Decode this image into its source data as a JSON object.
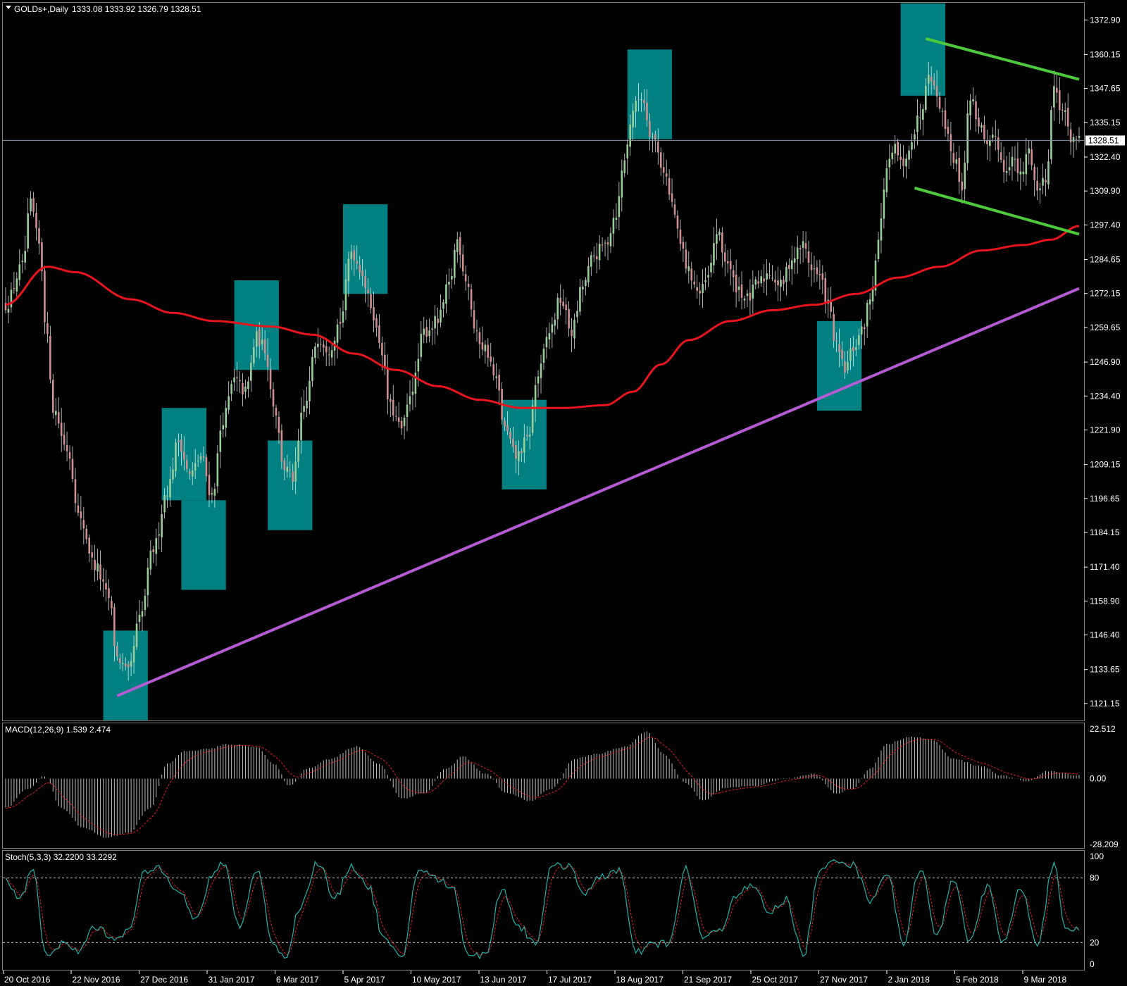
{
  "window": {
    "symbol_title": "GOLDs+,Daily",
    "ohlc_readout": "1333.08 1333.92 1326.79 1328.51"
  },
  "colors": {
    "background": "#000000",
    "grid": "#808080",
    "bull_candle": "#9acd9a",
    "bear_candle": "#d09090",
    "ma_line": "#e8141e",
    "trend_line": "#b45ad2",
    "channel": "#4ec83c",
    "highlight_box": "#008080",
    "macd_hist": "#c0c0c0",
    "macd_signal": "#e01e1e",
    "stoch_main": "#20b2aa",
    "stoch_signal": "#e01e1e",
    "current_price_line": "#8c9aa8"
  },
  "chart_data": [
    {
      "type": "candlestick",
      "title": "GOLDs+,Daily",
      "ohlc": {
        "open": 1333.08,
        "high": 1333.92,
        "low": 1326.79,
        "close": 1328.51
      },
      "current_price": 1328.51,
      "ylim": [
        1114.9,
        1379.2
      ],
      "y_ticks": [
        "1372.90",
        "1360.15",
        "1347.65",
        "1335.15",
        "1322.40",
        "1309.90",
        "1297.40",
        "1284.65",
        "1272.15",
        "1259.65",
        "1246.90",
        "1234.40",
        "1221.90",
        "1209.15",
        "1196.65",
        "1184.15",
        "1171.40",
        "1158.90",
        "1146.40",
        "1133.65",
        "1121.15"
      ],
      "x_ticks": [
        "20 Oct 2016",
        "22 Nov 2016",
        "27 Dec 2016",
        "31 Jan 2017",
        "6 Mar 2017",
        "5 Apr 2017",
        "10 May 2017",
        "13 Jun 2017",
        "17 Jul 2017",
        "18 Aug 2017",
        "21 Sep 2017",
        "25 Oct 2017",
        "27 Nov 2017",
        "2 Jan 2018",
        "5 Feb 2018",
        "9 Mar 2018"
      ],
      "price_path": [
        {
          "i": 0,
          "p": 1268
        },
        {
          "i": 6,
          "p": 1282
        },
        {
          "i": 9,
          "p": 1305
        },
        {
          "i": 12,
          "p": 1290
        },
        {
          "i": 15,
          "p": 1255
        },
        {
          "i": 17,
          "p": 1230
        },
        {
          "i": 22,
          "p": 1215
        },
        {
          "i": 27,
          "p": 1188
        },
        {
          "i": 32,
          "p": 1172
        },
        {
          "i": 37,
          "p": 1160
        },
        {
          "i": 40,
          "p": 1138
        },
        {
          "i": 44,
          "p": 1132
        },
        {
          "i": 48,
          "p": 1152
        },
        {
          "i": 53,
          "p": 1178
        },
        {
          "i": 58,
          "p": 1200
        },
        {
          "i": 62,
          "p": 1218
        },
        {
          "i": 66,
          "p": 1205
        },
        {
          "i": 70,
          "p": 1212
        },
        {
          "i": 74,
          "p": 1198
        },
        {
          "i": 78,
          "p": 1226
        },
        {
          "i": 82,
          "p": 1240
        },
        {
          "i": 86,
          "p": 1236
        },
        {
          "i": 90,
          "p": 1256
        },
        {
          "i": 93,
          "p": 1252
        },
        {
          "i": 96,
          "p": 1232
        },
        {
          "i": 100,
          "p": 1208
        },
        {
          "i": 103,
          "p": 1204
        },
        {
          "i": 107,
          "p": 1230
        },
        {
          "i": 112,
          "p": 1256
        },
        {
          "i": 116,
          "p": 1252
        },
        {
          "i": 120,
          "p": 1262
        },
        {
          "i": 124,
          "p": 1288
        },
        {
          "i": 127,
          "p": 1282
        },
        {
          "i": 131,
          "p": 1268
        },
        {
          "i": 134,
          "p": 1255
        },
        {
          "i": 138,
          "p": 1230
        },
        {
          "i": 142,
          "p": 1222
        },
        {
          "i": 146,
          "p": 1238
        },
        {
          "i": 150,
          "p": 1258
        },
        {
          "i": 155,
          "p": 1262
        },
        {
          "i": 159,
          "p": 1275
        },
        {
          "i": 162,
          "p": 1292
        },
        {
          "i": 165,
          "p": 1278
        },
        {
          "i": 169,
          "p": 1256
        },
        {
          "i": 172,
          "p": 1252
        },
        {
          "i": 176,
          "p": 1240
        },
        {
          "i": 179,
          "p": 1222
        },
        {
          "i": 183,
          "p": 1212
        },
        {
          "i": 187,
          "p": 1218
        },
        {
          "i": 191,
          "p": 1242
        },
        {
          "i": 195,
          "p": 1258
        },
        {
          "i": 199,
          "p": 1270
        },
        {
          "i": 203,
          "p": 1258
        },
        {
          "i": 207,
          "p": 1275
        },
        {
          "i": 211,
          "p": 1286
        },
        {
          "i": 215,
          "p": 1290
        },
        {
          "i": 219,
          "p": 1302
        },
        {
          "i": 222,
          "p": 1322
        },
        {
          "i": 225,
          "p": 1340
        },
        {
          "i": 228,
          "p": 1345
        },
        {
          "i": 232,
          "p": 1330
        },
        {
          "i": 236,
          "p": 1318
        },
        {
          "i": 239,
          "p": 1305
        },
        {
          "i": 242,
          "p": 1290
        },
        {
          "i": 245,
          "p": 1280
        },
        {
          "i": 249,
          "p": 1272
        },
        {
          "i": 252,
          "p": 1278
        },
        {
          "i": 255,
          "p": 1295
        },
        {
          "i": 258,
          "p": 1285
        },
        {
          "i": 262,
          "p": 1275
        },
        {
          "i": 266,
          "p": 1270
        },
        {
          "i": 270,
          "p": 1276
        },
        {
          "i": 274,
          "p": 1280
        },
        {
          "i": 278,
          "p": 1275
        },
        {
          "i": 282,
          "p": 1285
        },
        {
          "i": 286,
          "p": 1290
        },
        {
          "i": 289,
          "p": 1282
        },
        {
          "i": 292,
          "p": 1278
        },
        {
          "i": 295,
          "p": 1268
        },
        {
          "i": 298,
          "p": 1252
        },
        {
          "i": 301,
          "p": 1244
        },
        {
          "i": 304,
          "p": 1252
        },
        {
          "i": 307,
          "p": 1258
        },
        {
          "i": 310,
          "p": 1270
        },
        {
          "i": 313,
          "p": 1292
        },
        {
          "i": 316,
          "p": 1318
        },
        {
          "i": 319,
          "p": 1325
        },
        {
          "i": 322,
          "p": 1318
        },
        {
          "i": 325,
          "p": 1330
        },
        {
          "i": 328,
          "p": 1338
        },
        {
          "i": 331,
          "p": 1355
        },
        {
          "i": 334,
          "p": 1345
        },
        {
          "i": 337,
          "p": 1335
        },
        {
          "i": 340,
          "p": 1322
        },
        {
          "i": 343,
          "p": 1312
        },
        {
          "i": 346,
          "p": 1345
        },
        {
          "i": 349,
          "p": 1335
        },
        {
          "i": 352,
          "p": 1325
        },
        {
          "i": 355,
          "p": 1330
        },
        {
          "i": 358,
          "p": 1318
        },
        {
          "i": 361,
          "p": 1322
        },
        {
          "i": 364,
          "p": 1315
        },
        {
          "i": 367,
          "p": 1325
        },
        {
          "i": 370,
          "p": 1310
        },
        {
          "i": 373,
          "p": 1315
        },
        {
          "i": 376,
          "p": 1348
        },
        {
          "i": 379,
          "p": 1340
        },
        {
          "i": 382,
          "p": 1330
        },
        {
          "i": 385,
          "p": 1328
        }
      ],
      "ma_path": [
        {
          "i": 0,
          "p": 1268
        },
        {
          "i": 15,
          "p": 1282
        },
        {
          "i": 25,
          "p": 1280
        },
        {
          "i": 45,
          "p": 1270
        },
        {
          "i": 60,
          "p": 1265
        },
        {
          "i": 75,
          "p": 1262
        },
        {
          "i": 95,
          "p": 1260
        },
        {
          "i": 110,
          "p": 1257
        },
        {
          "i": 125,
          "p": 1250
        },
        {
          "i": 140,
          "p": 1244
        },
        {
          "i": 155,
          "p": 1238
        },
        {
          "i": 170,
          "p": 1233
        },
        {
          "i": 185,
          "p": 1230
        },
        {
          "i": 200,
          "p": 1230
        },
        {
          "i": 215,
          "p": 1231
        },
        {
          "i": 225,
          "p": 1236
        },
        {
          "i": 235,
          "p": 1246
        },
        {
          "i": 245,
          "p": 1255
        },
        {
          "i": 260,
          "p": 1262
        },
        {
          "i": 275,
          "p": 1266
        },
        {
          "i": 290,
          "p": 1268
        },
        {
          "i": 305,
          "p": 1272
        },
        {
          "i": 320,
          "p": 1278
        },
        {
          "i": 335,
          "p": 1282
        },
        {
          "i": 350,
          "p": 1288
        },
        {
          "i": 365,
          "p": 1290
        },
        {
          "i": 375,
          "p": 1292
        },
        {
          "i": 385,
          "p": 1297
        }
      ],
      "trend_line": [
        [
          1124,
          "start"
        ],
        [
          1274,
          "end"
        ]
      ],
      "trend_line_values": {
        "start_index": 40,
        "start": 1124,
        "end_index": 385,
        "end": 1274
      },
      "channel_upper": {
        "start_index": 330,
        "start": 1366,
        "end_index": 385,
        "end": 1351
      },
      "channel_lower": {
        "start_index": 326,
        "start": 1311,
        "end_index": 385,
        "end": 1294
      },
      "highlight_boxes": [
        {
          "start_index": 35,
          "end_index": 51,
          "low": 1115,
          "high": 1148
        },
        {
          "start_index": 56,
          "end_index": 72,
          "low": 1196,
          "high": 1230
        },
        {
          "start_index": 63,
          "end_index": 79,
          "low": 1163,
          "high": 1196
        },
        {
          "start_index": 82,
          "end_index": 98,
          "low": 1244,
          "high": 1277
        },
        {
          "start_index": 94,
          "end_index": 110,
          "low": 1185,
          "high": 1218
        },
        {
          "start_index": 121,
          "end_index": 137,
          "low": 1272,
          "high": 1305
        },
        {
          "start_index": 178,
          "end_index": 194,
          "low": 1200,
          "high": 1233
        },
        {
          "start_index": 223,
          "end_index": 239,
          "low": 1329,
          "high": 1362
        },
        {
          "start_index": 291,
          "end_index": 307,
          "low": 1229,
          "high": 1262
        },
        {
          "start_index": 321,
          "end_index": 337,
          "low": 1345,
          "high": 1379
        }
      ]
    },
    {
      "type": "bar",
      "title": "MACD(12,26,9) 1.539 2.474",
      "ylim": [
        -28.209,
        22.512
      ],
      "y_ticks": [
        "22.512",
        "0.00",
        "-28.209"
      ],
      "macd_path": [
        {
          "i": 0,
          "p": -12
        },
        {
          "i": 8,
          "p": -4
        },
        {
          "i": 14,
          "p": 1
        },
        {
          "i": 20,
          "p": -12
        },
        {
          "i": 28,
          "p": -20
        },
        {
          "i": 36,
          "p": -24
        },
        {
          "i": 44,
          "p": -22
        },
        {
          "i": 52,
          "p": -12
        },
        {
          "i": 58,
          "p": 6
        },
        {
          "i": 64,
          "p": 11
        },
        {
          "i": 72,
          "p": 12
        },
        {
          "i": 80,
          "p": 14
        },
        {
          "i": 90,
          "p": 13
        },
        {
          "i": 96,
          "p": 6
        },
        {
          "i": 102,
          "p": -3
        },
        {
          "i": 108,
          "p": 4
        },
        {
          "i": 116,
          "p": 8
        },
        {
          "i": 126,
          "p": 13
        },
        {
          "i": 134,
          "p": 6
        },
        {
          "i": 142,
          "p": -8
        },
        {
          "i": 150,
          "p": -6
        },
        {
          "i": 158,
          "p": 4
        },
        {
          "i": 164,
          "p": 9
        },
        {
          "i": 172,
          "p": 2
        },
        {
          "i": 180,
          "p": -6
        },
        {
          "i": 188,
          "p": -9
        },
        {
          "i": 196,
          "p": -4
        },
        {
          "i": 204,
          "p": 8
        },
        {
          "i": 212,
          "p": 10
        },
        {
          "i": 222,
          "p": 13
        },
        {
          "i": 230,
          "p": 19
        },
        {
          "i": 236,
          "p": 10
        },
        {
          "i": 244,
          "p": -2
        },
        {
          "i": 250,
          "p": -9
        },
        {
          "i": 258,
          "p": -4
        },
        {
          "i": 268,
          "p": -3
        },
        {
          "i": 280,
          "p": 0
        },
        {
          "i": 290,
          "p": 2
        },
        {
          "i": 298,
          "p": -6
        },
        {
          "i": 304,
          "p": -4
        },
        {
          "i": 310,
          "p": 4
        },
        {
          "i": 316,
          "p": 14
        },
        {
          "i": 324,
          "p": 17
        },
        {
          "i": 332,
          "p": 16
        },
        {
          "i": 340,
          "p": 8
        },
        {
          "i": 350,
          "p": 5
        },
        {
          "i": 358,
          "p": 1
        },
        {
          "i": 366,
          "p": -1
        },
        {
          "i": 374,
          "p": 3
        },
        {
          "i": 385,
          "p": 1.5
        }
      ]
    },
    {
      "type": "line",
      "title": "Stoch(5,3,3) 32.2200 33.2292",
      "ylim": [
        0,
        100
      ],
      "y_ticks": [
        "100",
        "80",
        "20",
        "0"
      ],
      "levels": [
        80,
        20
      ],
      "stoch_path": [
        {
          "i": 0,
          "p": 78
        },
        {
          "i": 5,
          "p": 62
        },
        {
          "i": 10,
          "p": 88
        },
        {
          "i": 14,
          "p": 10
        },
        {
          "i": 20,
          "p": 18
        },
        {
          "i": 26,
          "p": 12
        },
        {
          "i": 32,
          "p": 35
        },
        {
          "i": 38,
          "p": 25
        },
        {
          "i": 44,
          "p": 30
        },
        {
          "i": 50,
          "p": 85
        },
        {
          "i": 55,
          "p": 90
        },
        {
          "i": 62,
          "p": 70
        },
        {
          "i": 68,
          "p": 40
        },
        {
          "i": 74,
          "p": 80
        },
        {
          "i": 78,
          "p": 95
        },
        {
          "i": 84,
          "p": 35
        },
        {
          "i": 90,
          "p": 88
        },
        {
          "i": 96,
          "p": 20
        },
        {
          "i": 100,
          "p": 6
        },
        {
          "i": 106,
          "p": 55
        },
        {
          "i": 112,
          "p": 95
        },
        {
          "i": 118,
          "p": 60
        },
        {
          "i": 124,
          "p": 92
        },
        {
          "i": 130,
          "p": 72
        },
        {
          "i": 136,
          "p": 22
        },
        {
          "i": 142,
          "p": 4
        },
        {
          "i": 148,
          "p": 88
        },
        {
          "i": 154,
          "p": 80
        },
        {
          "i": 160,
          "p": 72
        },
        {
          "i": 166,
          "p": 10
        },
        {
          "i": 172,
          "p": 8
        },
        {
          "i": 178,
          "p": 70
        },
        {
          "i": 184,
          "p": 35
        },
        {
          "i": 190,
          "p": 20
        },
        {
          "i": 196,
          "p": 90
        },
        {
          "i": 202,
          "p": 92
        },
        {
          "i": 208,
          "p": 65
        },
        {
          "i": 214,
          "p": 82
        },
        {
          "i": 220,
          "p": 88
        },
        {
          "i": 226,
          "p": 10
        },
        {
          "i": 232,
          "p": 18
        },
        {
          "i": 238,
          "p": 20
        },
        {
          "i": 244,
          "p": 88
        },
        {
          "i": 250,
          "p": 25
        },
        {
          "i": 256,
          "p": 30
        },
        {
          "i": 262,
          "p": 65
        },
        {
          "i": 268,
          "p": 72
        },
        {
          "i": 274,
          "p": 48
        },
        {
          "i": 280,
          "p": 60
        },
        {
          "i": 286,
          "p": 8
        },
        {
          "i": 292,
          "p": 85
        },
        {
          "i": 298,
          "p": 98
        },
        {
          "i": 304,
          "p": 92
        },
        {
          "i": 310,
          "p": 60
        },
        {
          "i": 316,
          "p": 85
        },
        {
          "i": 322,
          "p": 20
        },
        {
          "i": 328,
          "p": 90
        },
        {
          "i": 334,
          "p": 25
        },
        {
          "i": 340,
          "p": 80
        },
        {
          "i": 346,
          "p": 20
        },
        {
          "i": 352,
          "p": 72
        },
        {
          "i": 358,
          "p": 20
        },
        {
          "i": 364,
          "p": 70
        },
        {
          "i": 370,
          "p": 20
        },
        {
          "i": 376,
          "p": 92
        },
        {
          "i": 380,
          "p": 30
        },
        {
          "i": 385,
          "p": 33
        }
      ]
    }
  ]
}
